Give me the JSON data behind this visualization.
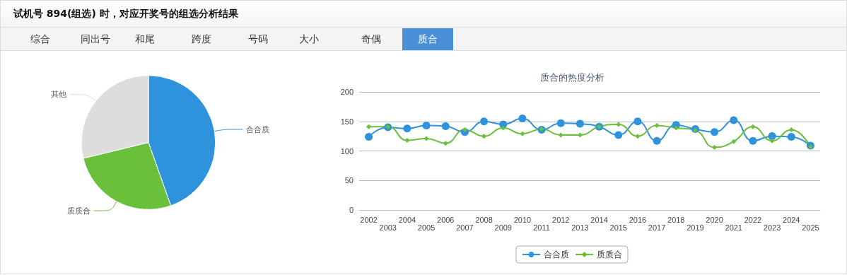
{
  "chart_data": [
    {
      "type": "pie",
      "title": "试机号 894(组选) 时，对应开奖号的组选分析结果",
      "annotations": [
        "综合",
        "同出号",
        "和尾",
        "跨度",
        "号码",
        "大小",
        "奇偶",
        "质合"
      ],
      "categories": [
        "合合质",
        "质质合",
        "其他"
      ],
      "values": [
        44.6,
        26.6,
        28.8
      ],
      "colors": [
        "#2f92dc",
        "#6abf3b",
        "#dddddd"
      ],
      "legend": false
    },
    {
      "type": "line",
      "title": "质合的热度分析",
      "categories": [
        "2002",
        "2003",
        "2004",
        "2005",
        "2006",
        "2007",
        "2008",
        "2009",
        "2010",
        "2011",
        "2012",
        "2013",
        "2014",
        "2015",
        "2016",
        "2017",
        "2018",
        "2019",
        "2020",
        "2021",
        "2022",
        "2023",
        "2024",
        "2025"
      ],
      "series": [
        {
          "name": "合合质",
          "color": "#2f92dc",
          "marker": "circle",
          "values": [
            124,
            140,
            138,
            143,
            142,
            132,
            150,
            145,
            155,
            136,
            147,
            146,
            141,
            127,
            150,
            117,
            144,
            137,
            132,
            152,
            117,
            125,
            124,
            109
          ]
        },
        {
          "name": "质质合",
          "color": "#6abf3b",
          "marker": "diamond",
          "values": [
            141,
            141,
            118,
            121,
            113,
            136,
            125,
            139,
            129,
            137,
            127,
            127,
            141,
            145,
            125,
            143,
            139,
            135,
            106,
            116,
            141,
            117,
            136,
            107
          ]
        }
      ],
      "ylim": [
        0,
        200
      ],
      "yticks": [
        0,
        50,
        100,
        150,
        200
      ],
      "grid": "y",
      "legend": "bottom"
    }
  ]
}
